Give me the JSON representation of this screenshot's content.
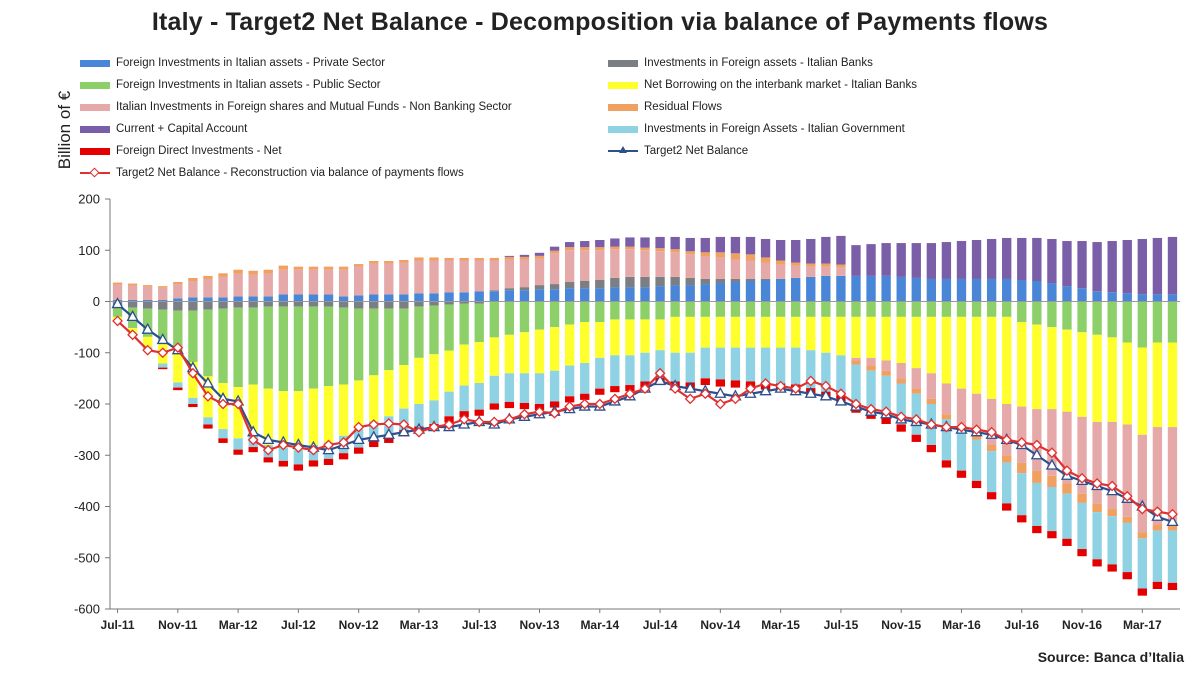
{
  "colors": {
    "private": "#4a86d8",
    "banks_foreign": "#7b7f83",
    "public": "#8dd06a",
    "interbank": "#ffff2e",
    "non_banking": "#e6a9a9",
    "residual": "#f0a060",
    "current_account": "#7b5ea8",
    "govt_foreign": "#8fd2e3",
    "fdi": "#e50000",
    "target2": "#2d4f8c",
    "reconstruction": "#e03030"
  },
  "chart_data": {
    "type": "bar",
    "subtype": "stacked bar with line overlays",
    "title": "Italy - Target2 Net Balance - Decomposition  via balance of Payments flows",
    "ylabel": "Billion of  €",
    "xlabel": "",
    "ylim": [
      -600,
      200
    ],
    "yticks": [
      200,
      100,
      0,
      -100,
      -200,
      -300,
      -400,
      -500,
      -600
    ],
    "grid": false,
    "legend_position": "top",
    "x_tick_labels": [
      "Jul-11",
      "Nov-11",
      "Mar-12",
      "Jul-12",
      "Nov-12",
      "Mar-13",
      "Jul-13",
      "Nov-13",
      "Mar-14",
      "Jul-14",
      "Nov-14",
      "Mar-15",
      "Jul-15",
      "Nov-15",
      "Mar-16",
      "Jul-16",
      "Nov-16",
      "Mar-17"
    ],
    "categories": [
      "Jul-11",
      "Aug-11",
      "Sep-11",
      "Oct-11",
      "Nov-11",
      "Dec-11",
      "Jan-12",
      "Feb-12",
      "Mar-12",
      "Apr-12",
      "May-12",
      "Jun-12",
      "Jul-12",
      "Aug-12",
      "Sep-12",
      "Oct-12",
      "Nov-12",
      "Dec-12",
      "Jan-13",
      "Feb-13",
      "Mar-13",
      "Apr-13",
      "May-13",
      "Jun-13",
      "Jul-13",
      "Aug-13",
      "Sep-13",
      "Oct-13",
      "Nov-13",
      "Dec-13",
      "Jan-14",
      "Feb-14",
      "Mar-14",
      "Apr-14",
      "May-14",
      "Jun-14",
      "Jul-14",
      "Aug-14",
      "Sep-14",
      "Oct-14",
      "Nov-14",
      "Dec-14",
      "Jan-15",
      "Feb-15",
      "Mar-15",
      "Apr-15",
      "May-15",
      "Jun-15",
      "Jul-15",
      "Aug-15",
      "Sep-15",
      "Oct-15",
      "Nov-15",
      "Dec-15",
      "Jan-16",
      "Feb-16",
      "Mar-16",
      "Apr-16",
      "May-16",
      "Jun-16",
      "Jul-16",
      "Aug-16",
      "Sep-16",
      "Oct-16",
      "Nov-16",
      "Dec-16",
      "Jan-17",
      "Feb-17",
      "Mar-17",
      "Apr-17",
      "May-17"
    ],
    "series": [
      {
        "name": "Foreign Investments in Italian assets - Private Sector",
        "color_key": "private",
        "values": [
          3,
          3,
          3,
          3,
          6,
          8,
          8,
          8,
          10,
          10,
          10,
          14,
          14,
          14,
          14,
          10,
          12,
          14,
          14,
          14,
          16,
          16,
          18,
          18,
          20,
          20,
          22,
          22,
          24,
          24,
          26,
          26,
          26,
          28,
          28,
          28,
          30,
          32,
          32,
          34,
          36,
          38,
          40,
          42,
          44,
          46,
          48,
          50,
          50,
          50,
          50,
          50,
          48,
          46,
          44,
          44,
          44,
          44,
          44,
          44,
          42,
          40,
          36,
          30,
          26,
          20,
          18,
          16,
          14,
          14,
          14
        ]
      },
      {
        "name": "Investments in Foreign assets - Italian Banks",
        "color_key": "banks_foreign",
        "values": [
          -10,
          -12,
          -14,
          -16,
          -18,
          -18,
          -16,
          -14,
          -12,
          -12,
          -10,
          -10,
          -10,
          -10,
          -10,
          -12,
          -14,
          -14,
          -14,
          -14,
          -10,
          -8,
          -6,
          -4,
          -4,
          2,
          4,
          6,
          8,
          10,
          12,
          14,
          16,
          18,
          20,
          20,
          18,
          16,
          14,
          10,
          8,
          6,
          4,
          2,
          0,
          0,
          0,
          0,
          0,
          0,
          0,
          0,
          0,
          0,
          0,
          0,
          0,
          0,
          0,
          0,
          0,
          0,
          0,
          0,
          0,
          0,
          0,
          0,
          0,
          0,
          0
        ]
      },
      {
        "name": "Foreign Investments in Italian assets - Public Sector",
        "color_key": "public",
        "values": [
          -20,
          -40,
          -55,
          -65,
          -80,
          -100,
          -130,
          -145,
          -155,
          -150,
          -160,
          -165,
          -165,
          -160,
          -155,
          -150,
          -140,
          -130,
          -120,
          -110,
          -100,
          -95,
          -90,
          -80,
          -75,
          -70,
          -65,
          -60,
          -55,
          -50,
          -45,
          -40,
          -40,
          -35,
          -35,
          -35,
          -35,
          -30,
          -30,
          -30,
          -30,
          -30,
          -30,
          -30,
          -30,
          -30,
          -30,
          -30,
          -30,
          -30,
          -30,
          -30,
          -30,
          -30,
          -30,
          -30,
          -30,
          -30,
          -30,
          -30,
          -40,
          -45,
          -50,
          -55,
          -60,
          -65,
          -70,
          -80,
          -90,
          -80,
          -80
        ]
      },
      {
        "name": "Net Borrowing on the interbank market - Italian Banks",
        "color_key": "interbank",
        "values": [
          -5,
          -10,
          -20,
          -40,
          -60,
          -70,
          -80,
          -90,
          -100,
          -100,
          -110,
          -110,
          -115,
          -110,
          -110,
          -100,
          -95,
          -90,
          -90,
          -85,
          -90,
          -90,
          -80,
          -80,
          -80,
          -75,
          -75,
          -80,
          -85,
          -85,
          -80,
          -80,
          -70,
          -70,
          -70,
          -65,
          -60,
          -70,
          -70,
          -60,
          -60,
          -60,
          -60,
          -60,
          -60,
          -60,
          -65,
          -70,
          -75,
          -80,
          -80,
          -85,
          -90,
          -100,
          -110,
          -130,
          -140,
          -150,
          -160,
          -170,
          -165,
          -165,
          -160,
          -160,
          -165,
          -170,
          -165,
          -160,
          -170,
          -165,
          -165
        ]
      },
      {
        "name": "Italian Investments in Foreign shares and Mutual Funds - Non Banking Sector",
        "color_key": "non_banking",
        "values": [
          30,
          28,
          26,
          24,
          28,
          32,
          36,
          40,
          44,
          42,
          44,
          48,
          48,
          48,
          48,
          52,
          56,
          60,
          60,
          62,
          64,
          64,
          62,
          62,
          60,
          58,
          56,
          54,
          52,
          60,
          62,
          60,
          58,
          56,
          54,
          52,
          50,
          48,
          46,
          44,
          42,
          38,
          36,
          32,
          28,
          24,
          20,
          18,
          16,
          -5,
          -15,
          -20,
          -30,
          -40,
          -50,
          -60,
          -70,
          -80,
          -90,
          -100,
          -110,
          -120,
          -130,
          -140,
          -150,
          -160,
          -170,
          -180,
          -190,
          -190,
          -190
        ]
      },
      {
        "name": "Residual Flows",
        "color_key": "residual",
        "values": [
          4,
          4,
          3,
          3,
          4,
          6,
          6,
          7,
          8,
          8,
          8,
          8,
          6,
          6,
          6,
          6,
          5,
          5,
          5,
          5,
          6,
          6,
          5,
          5,
          5,
          5,
          5,
          5,
          5,
          5,
          6,
          6,
          6,
          5,
          5,
          5,
          6,
          6,
          6,
          8,
          10,
          12,
          12,
          10,
          8,
          6,
          6,
          6,
          6,
          -8,
          -10,
          -10,
          -10,
          -10,
          -10,
          -10,
          -10,
          -10,
          -12,
          -14,
          -20,
          -24,
          -22,
          -20,
          -18,
          -16,
          -14,
          -12,
          -12,
          -12,
          -12
        ]
      },
      {
        "name": "Current + Capital Account",
        "color_key": "current_account",
        "values": [
          0,
          0,
          0,
          0,
          0,
          0,
          0,
          0,
          0,
          0,
          0,
          0,
          0,
          0,
          0,
          0,
          0,
          0,
          0,
          0,
          0,
          0,
          0,
          0,
          0,
          0,
          2,
          4,
          6,
          8,
          10,
          12,
          14,
          16,
          18,
          20,
          22,
          24,
          26,
          28,
          30,
          32,
          34,
          36,
          40,
          44,
          48,
          52,
          56,
          60,
          62,
          64,
          66,
          68,
          70,
          72,
          74,
          76,
          78,
          80,
          82,
          84,
          86,
          88,
          92,
          96,
          100,
          104,
          108,
          110,
          112
        ]
      },
      {
        "name": "Investments in Foreign Assets - Italian Government",
        "color_key": "govt_foreign",
        "values": [
          0,
          -3,
          -5,
          -8,
          -10,
          -12,
          -14,
          -18,
          -22,
          -22,
          -24,
          -26,
          -28,
          -30,
          -32,
          -34,
          -36,
          -38,
          -40,
          -42,
          -44,
          -46,
          -48,
          -50,
          -52,
          -54,
          -56,
          -58,
          -60,
          -60,
          -60,
          -60,
          -60,
          -60,
          -58,
          -56,
          -54,
          -56,
          -58,
          -60,
          -62,
          -64,
          -66,
          -68,
          -70,
          -72,
          -74,
          -76,
          -78,
          -80,
          -80,
          -80,
          -80,
          -80,
          -80,
          -80,
          -80,
          -80,
          -80,
          -80,
          -82,
          -84,
          -86,
          -88,
          -90,
          -92,
          -94,
          -96,
          -98,
          -100,
          -102
        ]
      },
      {
        "name": "Foreign Direct Investments - Net",
        "color_key": "fdi",
        "values": [
          0,
          0,
          -2,
          -3,
          -5,
          -6,
          -8,
          -9,
          -10,
          -10,
          -10,
          -11,
          -12,
          -12,
          -12,
          -12,
          -12,
          -12,
          -12,
          -12,
          -12,
          -12,
          -12,
          -12,
          -12,
          -12,
          -12,
          -12,
          -12,
          -12,
          -12,
          -12,
          -12,
          -12,
          -12,
          -12,
          -13,
          -13,
          -13,
          -13,
          -14,
          -14,
          -14,
          -14,
          -14,
          -14,
          -14,
          -14,
          -14,
          -14,
          -14,
          -14,
          -14,
          -14,
          -14,
          -14,
          -14,
          -14,
          -14,
          -14,
          -14,
          -14,
          -14,
          -14,
          -14,
          -14,
          -14,
          -14,
          -14,
          -14,
          -14
        ]
      }
    ],
    "lines": [
      {
        "name": "Target2 Net Balance",
        "color_key": "target2",
        "marker": "triangle",
        "values": [
          -5,
          -30,
          -55,
          -75,
          -95,
          -130,
          -160,
          -190,
          -195,
          -255,
          -270,
          -275,
          -280,
          -285,
          -290,
          -280,
          -270,
          -265,
          -260,
          -255,
          -250,
          -245,
          -245,
          -240,
          -235,
          -240,
          -230,
          -225,
          -220,
          -215,
          -210,
          -205,
          -205,
          -195,
          -185,
          -170,
          -155,
          -165,
          -170,
          -175,
          -180,
          -185,
          -180,
          -175,
          -170,
          -175,
          -180,
          -185,
          -195,
          -205,
          -215,
          -220,
          -230,
          -235,
          -240,
          -245,
          -250,
          -255,
          -260,
          -270,
          -280,
          -300,
          -320,
          -340,
          -350,
          -360,
          -370,
          -385,
          -400,
          -420,
          -430
        ]
      },
      {
        "name": "Target2 Net Balance - Reconstruction via balance of payments flows",
        "color_key": "reconstruction",
        "marker": "diamond",
        "values": [
          -38,
          -65,
          -95,
          -100,
          -90,
          -140,
          -185,
          -200,
          -200,
          -270,
          -290,
          -280,
          -285,
          -290,
          -280,
          -275,
          -245,
          -240,
          -238,
          -240,
          -255,
          -245,
          -240,
          -230,
          -235,
          -235,
          -230,
          -220,
          -215,
          -218,
          -205,
          -200,
          -200,
          -190,
          -180,
          -170,
          -140,
          -170,
          -190,
          -180,
          -200,
          -190,
          -170,
          -160,
          -165,
          -170,
          -155,
          -165,
          -180,
          -200,
          -210,
          -215,
          -225,
          -230,
          -240,
          -245,
          -245,
          -250,
          -255,
          -270,
          -275,
          -280,
          -295,
          -330,
          -345,
          -355,
          -360,
          -380,
          -405,
          -410,
          -415
        ]
      }
    ]
  },
  "legend": {
    "private": "Foreign Investments in Italian assets - Private Sector",
    "banks_foreign": "Investments in Foreign assets - Italian Banks",
    "public": "Foreign Investments in Italian assets - Public Sector",
    "interbank": "Net Borrowing on the interbank market - Italian Banks",
    "non_banking": "Italian Investments in Foreign shares and Mutual Funds - Non Banking Sector",
    "residual": "Residual Flows",
    "current_account": "Current + Capital Account",
    "govt_foreign": "Investments in Foreign Assets - Italian Government",
    "fdi": "Foreign Direct Investments - Net",
    "target2": "Target2 Net Balance",
    "reconstruction": "Target2 Net Balance - Reconstruction via balance of payments flows"
  },
  "source": "Source: Banca d’Italia"
}
